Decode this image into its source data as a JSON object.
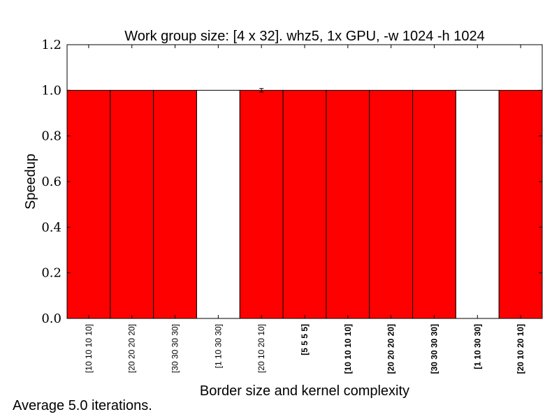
{
  "chart_data": {
    "type": "bar",
    "title": "Work group size: [4 x 32]. whz5, 1x GPU, -w 1024 -h 1024",
    "xlabel": "Border size and kernel complexity",
    "ylabel": "Speedup",
    "ylim": [
      0,
      1.2
    ],
    "yticks": [
      "0.0",
      "0.2",
      "0.4",
      "0.6",
      "0.8",
      "1.0",
      "1.2"
    ],
    "grid": false,
    "categories": [
      "[10 10 10 10]",
      "[20 20 20 20]",
      "[30 30 30 30]",
      "[1 10 30 30]",
      "[20 10 20 10]",
      "[5 5 5 5]",
      "[10 10 10 10]",
      "[20 20 20 20]",
      "[30 30 30 30]",
      "[1 10 30 30]",
      "[20 10 20 10]"
    ],
    "category_bold": [
      false,
      false,
      false,
      false,
      false,
      true,
      true,
      true,
      true,
      true,
      true
    ],
    "values": [
      1.0,
      1.0,
      1.0,
      1.0,
      1.0,
      1.0,
      1.0,
      1.0,
      1.0,
      1.0,
      1.0
    ],
    "bar_colors": [
      "#ff0000",
      "#ff0000",
      "#ff0000",
      "#ffffff",
      "#ff0000",
      "#ff0000",
      "#ff0000",
      "#ff0000",
      "#ff0000",
      "#ffffff",
      "#ff0000"
    ],
    "error_bars": [
      0,
      0,
      0,
      0,
      0.008,
      0,
      0,
      0,
      0,
      0,
      0
    ]
  },
  "footer": {
    "note": "Average 5.0 iterations."
  }
}
